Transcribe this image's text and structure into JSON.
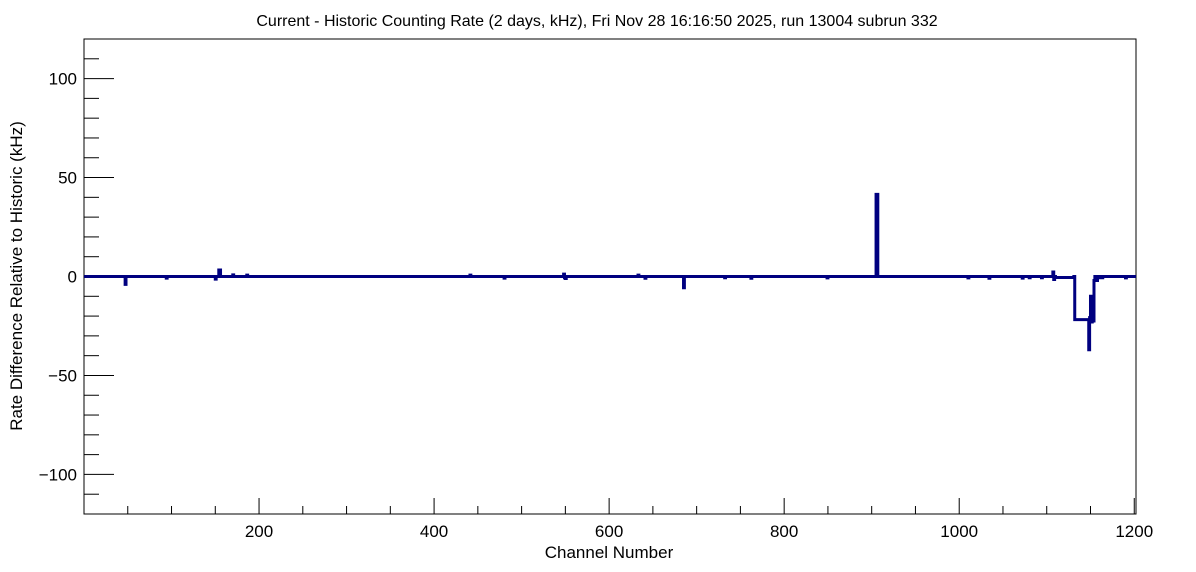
{
  "chart_data": {
    "type": "line",
    "title": "Current - Historic Counting Rate (2 days, kHz), Fri Nov 28 16:16:50 2025, run 13004 subrun 332",
    "xlabel": "Channel Number",
    "ylabel": "Rate Difference Relative to Historic (kHz)",
    "xlim": [
      0,
      1202
    ],
    "ylim": [
      -120,
      120
    ],
    "x_ticks": [
      200,
      400,
      600,
      800,
      1000,
      1200
    ],
    "x_tick_labels": [
      "200",
      "400",
      "600",
      "800",
      "1000",
      "1200"
    ],
    "y_ticks": [
      -100,
      -50,
      0,
      50,
      100
    ],
    "y_tick_labels": [
      "−100",
      "−50",
      "0",
      "50",
      "100"
    ],
    "grid": false,
    "line_color": "#000080",
    "series": [
      {
        "x": [
          0,
          47,
          47,
          48,
          48,
          94,
          94,
          95,
          95,
          150,
          150,
          151,
          151,
          154,
          154,
          156,
          156,
          170,
          170,
          171,
          171,
          186,
          186,
          187,
          187,
          441,
          441,
          442,
          442,
          480,
          480,
          481,
          481,
          548,
          548,
          549,
          549,
          550,
          550,
          551,
          551,
          633,
          633,
          634,
          634,
          641,
          641,
          642,
          642,
          685,
          685,
          686,
          686,
          732,
          732,
          733,
          733,
          762,
          762,
          763,
          763,
          849,
          849,
          850,
          850,
          905,
          905,
          907,
          907,
          1010,
          1010,
          1011,
          1011,
          1034,
          1034,
          1035,
          1035,
          1072,
          1072,
          1073,
          1073,
          1080,
          1080,
          1081,
          1081,
          1094,
          1094,
          1095,
          1095,
          1107,
          1107,
          1108,
          1108,
          1109,
          1109,
          1110,
          1110,
          1131,
          1131,
          1132,
          1132,
          1148,
          1148,
          1149,
          1149,
          1150,
          1150,
          1151,
          1151,
          1152,
          1152,
          1153,
          1153,
          1154,
          1154,
          1155,
          1155,
          1157,
          1157,
          1158,
          1158,
          1159,
          1159,
          1160,
          1160,
          1163,
          1163,
          1164,
          1164,
          1190,
          1190,
          1191,
          1191,
          1202
        ],
        "y": [
          0,
          0,
          -4,
          -4,
          0,
          0,
          -0.8,
          -0.8,
          0,
          0,
          -1.3,
          -1.3,
          0,
          0,
          3.3,
          3.3,
          0,
          0,
          0.8,
          0.8,
          0,
          0,
          0.7,
          0.7,
          0,
          0,
          0.7,
          0.7,
          0,
          0,
          -0.8,
          -0.8,
          0,
          0,
          1.2,
          1.2,
          -0.6,
          -0.6,
          -1,
          -1,
          0,
          0,
          0.7,
          0.7,
          0,
          0,
          -0.9,
          -0.9,
          0,
          0,
          -5.7,
          -5.7,
          0,
          0,
          -0.6,
          -0.6,
          0,
          0,
          -0.9,
          -0.9,
          0,
          0,
          -0.7,
          -0.7,
          0,
          0,
          41.5,
          41.5,
          0,
          0,
          -0.7,
          -0.7,
          0,
          0,
          -0.9,
          -0.9,
          0,
          0,
          -0.8,
          -0.8,
          0,
          0,
          -0.6,
          -0.6,
          0,
          0,
          -0.6,
          -0.6,
          0,
          0,
          2.3,
          2.3,
          -1.5,
          -1.5,
          0,
          0,
          -0.5,
          -0.5,
          0,
          0,
          -21.8,
          -21.8,
          -37,
          -37,
          -20.8,
          -20.8,
          -10,
          -10,
          -23,
          -23,
          -17,
          -17,
          -22.5,
          -22.5,
          -2,
          -2,
          0,
          0,
          -2,
          -2,
          0,
          0,
          -0.6,
          -0.6,
          0,
          0,
          -0.6,
          -0.6,
          0,
          0,
          -0.7,
          -0.7,
          0,
          0
        ]
      }
    ]
  }
}
